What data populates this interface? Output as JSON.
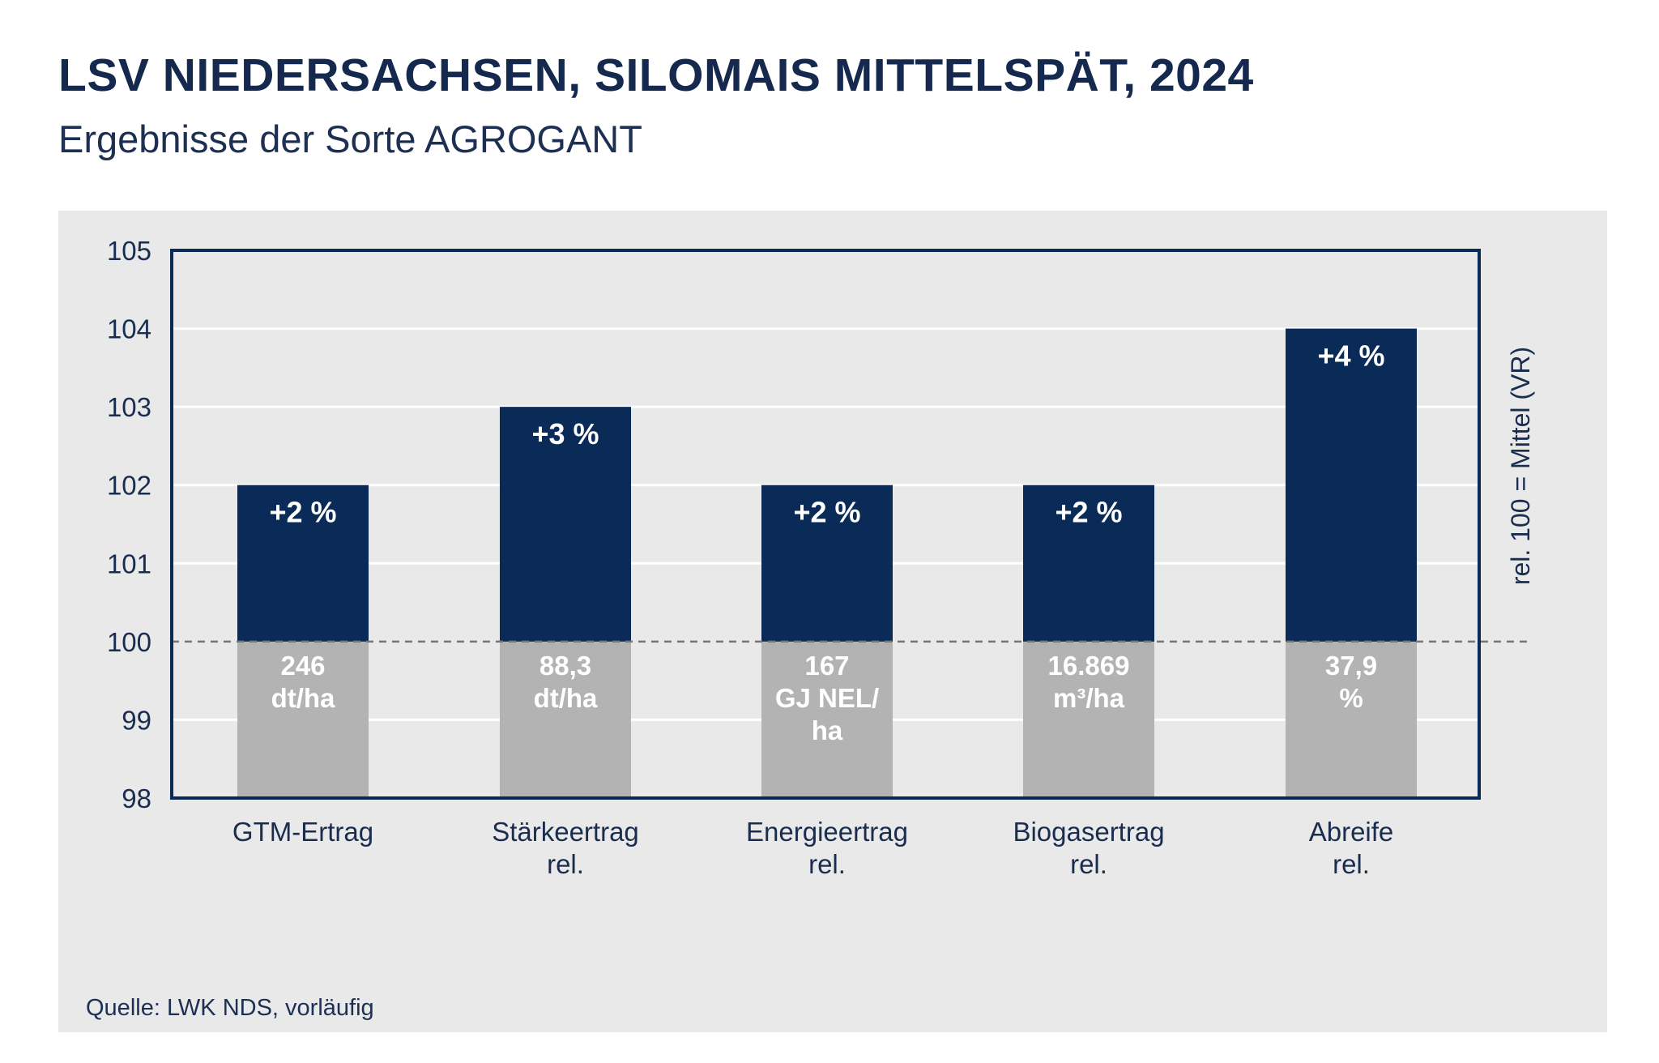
{
  "title": "LSV NIEDERSACHSEN, SILOMAIS MITTELSPÄT, 2024",
  "subtitle": "Ergebnisse der Sorte AGROGANT",
  "source": "Quelle: LWK NDS, vorläufig",
  "colors": {
    "bar_top": "#0a2b57",
    "bar_bottom": "#b3b3b3",
    "panel_bg": "#e9e9ea",
    "frame": "#0a2b57",
    "text": "#1b2d4f"
  },
  "chart_data": {
    "type": "bar",
    "categories": [
      [
        "GTM-Ertrag"
      ],
      [
        "Stärkeertrag",
        "rel."
      ],
      [
        "Energieertrag",
        "rel."
      ],
      [
        "Biogasertrag",
        "rel."
      ],
      [
        "Abreife",
        "rel."
      ]
    ],
    "values": [
      102,
      103,
      102,
      102,
      104
    ],
    "baseline": 100,
    "ylim": [
      98,
      105
    ],
    "yticks": [
      98,
      99,
      100,
      101,
      102,
      103,
      104,
      105
    ],
    "ylabel_right": "rel. 100 = Mittel (VR)",
    "percent_labels": [
      "+2 %",
      "+3 %",
      "+2 %",
      "+2 %",
      "+4 %"
    ],
    "absolute_labels": [
      [
        "246",
        "dt/ha"
      ],
      [
        "88,3",
        "dt/ha"
      ],
      [
        "167",
        "GJ NEL/",
        "ha"
      ],
      [
        "16.869",
        "m³/ha"
      ],
      [
        "37,9",
        "%"
      ]
    ],
    "grid": true
  }
}
